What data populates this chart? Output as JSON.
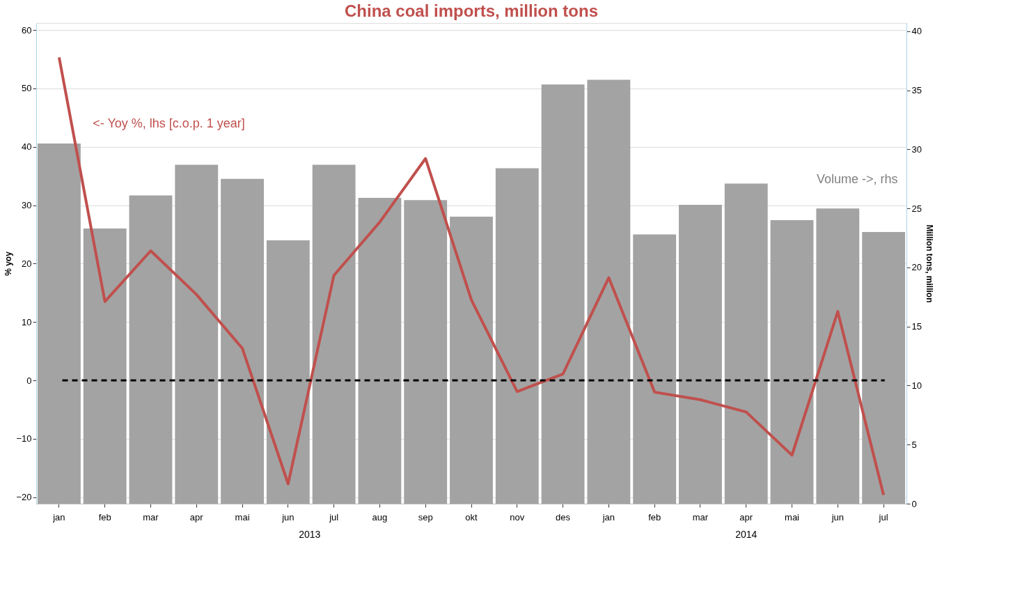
{
  "chart_data": {
    "type": "bar",
    "title": "China coal imports, million tons",
    "categories": [
      "jan",
      "feb",
      "mar",
      "apr",
      "mai",
      "jun",
      "jul",
      "aug",
      "sep",
      "okt",
      "nov",
      "des",
      "jan",
      "feb",
      "mar",
      "apr",
      "mai",
      "jun",
      "jul"
    ],
    "series": [
      {
        "axis": "y2",
        "color": "#a3a3a3",
        "values": [
          30.5,
          23.3,
          26.1,
          28.7,
          27.5,
          22.3,
          28.7,
          25.9,
          25.7,
          24.3,
          28.4,
          35.5,
          35.9,
          22.8,
          25.3,
          27.1,
          24.0,
          25.0,
          23.0
        ]
      },
      {
        "type": "line",
        "axis": "y",
        "color": "#c0504d",
        "line_style": "solid",
        "values": [
          55.3,
          13.5,
          22.2,
          14.7,
          5.5,
          -17.7,
          18.0,
          27.1,
          38.0,
          13.8,
          -1.9,
          1.1,
          17.6,
          -2.0,
          -3.3,
          -5.4,
          -12.8,
          11.8,
          -19.6
        ]
      }
    ],
    "ylabel": "% yoy",
    "y2label": "Million tons, million",
    "ylim": [
      -21.1,
      61.2
    ],
    "yticks": [
      -20,
      -10,
      0,
      10,
      20,
      30,
      40,
      50,
      60
    ],
    "y2lim": [
      0,
      40.7
    ],
    "y2ticks": [
      0,
      5,
      10,
      15,
      20,
      25,
      30,
      35,
      40
    ],
    "ref_lines": [
      {
        "axis": "y",
        "value": 0,
        "color": "#000000",
        "line_style": "dashed"
      }
    ],
    "annotations": [
      "<- Yoy %, lhs [c.o.p. 1 year]",
      "Volume ->, rhs",
      "2013",
      "2014"
    ],
    "grid": "y"
  }
}
